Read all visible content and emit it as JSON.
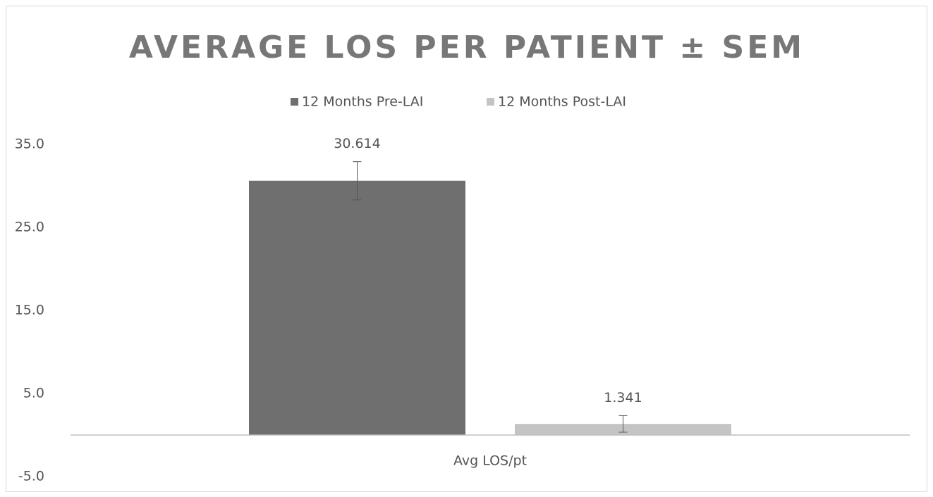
{
  "chart_data": {
    "type": "bar",
    "title": "AVERAGE LOS PER PATIENT ± SEM",
    "categories": [
      "Avg LOS/pt"
    ],
    "series": [
      {
        "name": "12 Months Pre-LAI",
        "color": "#6f6f6f",
        "values": [
          30.614
        ],
        "errors": [
          2.3
        ]
      },
      {
        "name": "12 Months Post-LAI",
        "color": "#c4c4c4",
        "values": [
          1.341
        ],
        "errors": [
          1.0
        ]
      }
    ],
    "ylim": [
      -5,
      35
    ],
    "yticks": [
      {
        "value": -5,
        "label": "-5.0"
      },
      {
        "value": 5,
        "label": "5.0"
      },
      {
        "value": 15,
        "label": "15.0"
      },
      {
        "value": 25,
        "label": "25.0"
      },
      {
        "value": 35,
        "label": "35.0"
      }
    ],
    "grid": false,
    "legend": "top"
  }
}
